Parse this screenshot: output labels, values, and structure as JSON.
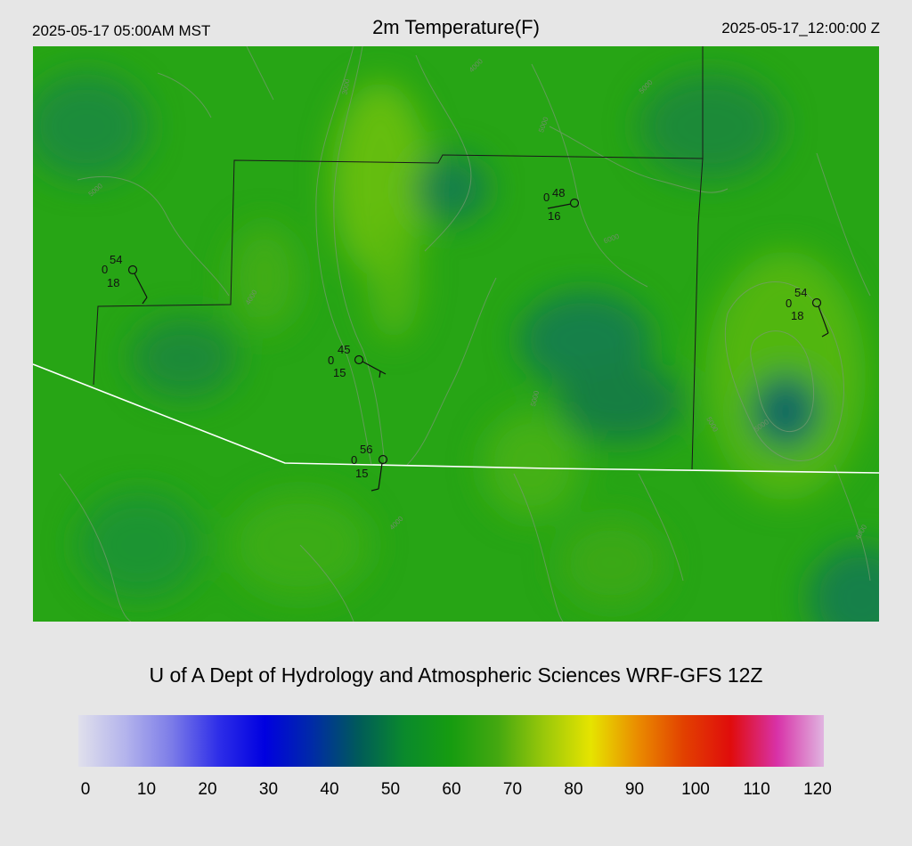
{
  "header": {
    "local_time": "2025-05-17 05:00AM MST",
    "title": "2m Temperature(F)",
    "valid_time": "2025-05-17_12:00:00 Z"
  },
  "credit": "U of A Dept of Hydrology and Atmospheric Sciences WRF-GFS 12Z",
  "colorbar": {
    "ticks": [
      "0",
      "10",
      "20",
      "30",
      "40",
      "50",
      "60",
      "70",
      "80",
      "90",
      "100",
      "110",
      "120"
    ],
    "colors": [
      "#e0e0ec",
      "#b4b4ec",
      "#7c7ce8",
      "#2e2ee8",
      "#0000e0",
      "#002aa8",
      "#005a5a",
      "#0a8a2c",
      "#169c10",
      "#44a810",
      "#9ac80a",
      "#e6e400",
      "#ea8c00",
      "#e24000",
      "#e00c0c",
      "#d832a8",
      "#e0b4e0"
    ]
  },
  "stations": [
    {
      "temp": "54",
      "dew": "0",
      "wind": "18"
    },
    {
      "temp": "48",
      "dew": "0",
      "wind": "16"
    },
    {
      "temp": "54",
      "dew": "0",
      "wind": "18"
    },
    {
      "temp": "45",
      "dew": "0",
      "wind": "15"
    },
    {
      "temp": "56",
      "dew": "0",
      "wind": "15"
    }
  ],
  "contour_labels": [
    "3000",
    "4000",
    "4000",
    "4000",
    "4000",
    "5000",
    "5000",
    "5000",
    "5000",
    "5000",
    "5000",
    "6000"
  ],
  "map_colors": {
    "base": "#27a515",
    "light": "#6cc010",
    "dark": "#13804a",
    "deep": "#0d6a62",
    "border": "#1a1a1a",
    "state_line": "#ffffff",
    "contour": "#7a9a74"
  }
}
